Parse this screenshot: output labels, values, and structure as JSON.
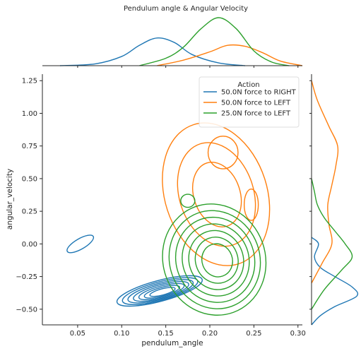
{
  "chart_data": {
    "type": "kde-joint",
    "title": "Pendulum angle & Angular Velocity",
    "xlabel": "pendulum_angle",
    "ylabel": "angular_velocity",
    "xlim": [
      0.01,
      0.305
    ],
    "ylim": [
      -0.62,
      1.3
    ],
    "xticks": [
      0.05,
      0.1,
      0.15,
      0.2,
      0.25,
      0.3
    ],
    "xtick_labels": [
      "0.05",
      "0.10",
      "0.15",
      "0.20",
      "0.25",
      "0.30"
    ],
    "yticks": [
      -0.5,
      -0.25,
      0.0,
      0.25,
      0.5,
      0.75,
      1.0,
      1.25
    ],
    "ytick_labels": [
      "−0.50",
      "−0.25",
      "0.00",
      "0.25",
      "0.50",
      "0.75",
      "1.00",
      "1.25"
    ],
    "grid": false,
    "legend": {
      "title": "Action",
      "placement": "top-right"
    },
    "series": [
      {
        "name": "50.0N force to RIGHT",
        "color": "#1f77b4",
        "blobs": [
          {
            "cx": 0.143,
            "cy": -0.36,
            "rx": 0.05,
            "ry": 0.08,
            "rot": -15,
            "levels": 7
          },
          {
            "cx": 0.053,
            "cy": 0.0,
            "rx": 0.017,
            "ry": 0.04,
            "rot": -30,
            "levels": 1
          }
        ],
        "marginal_x": {
          "x": [
            0.03,
            0.07,
            0.1,
            0.12,
            0.14,
            0.16,
            0.18,
            0.21,
            0.24
          ],
          "density": [
            0.0,
            0.02,
            0.1,
            0.22,
            0.3,
            0.25,
            0.12,
            0.03,
            0.0
          ]
        },
        "marginal_y": {
          "y": [
            -0.62,
            -0.55,
            -0.48,
            -0.4,
            -0.33,
            -0.25,
            -0.18,
            -0.1,
            0.0,
            0.05
          ],
          "density": [
            0.0,
            0.15,
            0.4,
            0.78,
            0.7,
            0.4,
            0.15,
            0.05,
            0.12,
            0.0
          ]
        }
      },
      {
        "name": "50.0N force to LEFT",
        "color": "#ff7f0e",
        "blobs": [
          {
            "cx": 0.207,
            "cy": 0.38,
            "rx": 0.058,
            "ry": 0.56,
            "rot": -18,
            "levels": 3
          },
          {
            "cx": 0.215,
            "cy": 0.7,
            "rx": 0.017,
            "ry": 0.125,
            "rot": 0,
            "levels": 1
          },
          {
            "cx": 0.247,
            "cy": 0.3,
            "rx": 0.008,
            "ry": 0.12,
            "rot": 0,
            "levels": 1
          }
        ],
        "marginal_x": {
          "x": [
            0.14,
            0.17,
            0.2,
            0.22,
            0.24,
            0.26,
            0.28,
            0.305
          ],
          "density": [
            0.0,
            0.06,
            0.15,
            0.22,
            0.21,
            0.14,
            0.05,
            0.0
          ]
        },
        "marginal_y": {
          "y": [
            -0.3,
            -0.15,
            0.0,
            0.15,
            0.3,
            0.45,
            0.6,
            0.75,
            0.9,
            1.1,
            1.25
          ],
          "density": [
            0.0,
            0.18,
            0.35,
            0.3,
            0.28,
            0.35,
            0.42,
            0.45,
            0.3,
            0.1,
            0.0
          ]
        }
      },
      {
        "name": "25.0N force to LEFT",
        "color": "#2ca02c",
        "blobs": [
          {
            "cx": 0.205,
            "cy": -0.12,
            "rx": 0.058,
            "ry": 0.43,
            "rot": -20,
            "levels": 7
          },
          {
            "cx": 0.175,
            "cy": 0.33,
            "rx": 0.008,
            "ry": 0.05,
            "rot": 0,
            "levels": 1
          }
        ],
        "marginal_x": {
          "x": [
            0.12,
            0.15,
            0.17,
            0.19,
            0.21,
            0.23,
            0.25,
            0.27,
            0.29
          ],
          "density": [
            0.0,
            0.08,
            0.2,
            0.4,
            0.52,
            0.4,
            0.16,
            0.04,
            0.0
          ]
        },
        "marginal_y": {
          "y": [
            -0.5,
            -0.35,
            -0.2,
            -0.1,
            0.0,
            0.1,
            0.2,
            0.3,
            0.4,
            0.5
          ],
          "density": [
            0.0,
            0.22,
            0.52,
            0.7,
            0.58,
            0.4,
            0.22,
            0.1,
            0.05,
            0.0
          ]
        }
      }
    ]
  }
}
